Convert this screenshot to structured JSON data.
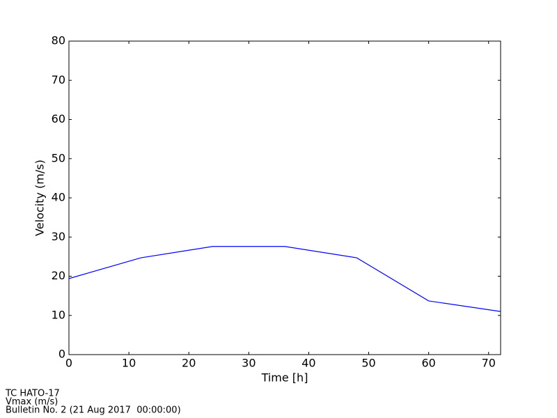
{
  "chart_data": {
    "type": "line",
    "xlabel": "Time [h]",
    "ylabel": "Velocity (m/s)",
    "x": [
      0,
      12,
      24,
      36,
      48,
      60,
      72
    ],
    "series": [
      {
        "name": "Vmax",
        "color": "#0000ff",
        "values": [
          19.4,
          24.7,
          27.6,
          27.6,
          24.7,
          13.7,
          11.0
        ]
      }
    ],
    "xlim": [
      0,
      72
    ],
    "xticks": [
      0,
      10,
      20,
      30,
      40,
      50,
      60,
      70
    ],
    "ylim": [
      0,
      80
    ],
    "yticks": [
      0,
      10,
      20,
      30,
      40,
      50,
      60,
      70,
      80
    ],
    "annotations": [
      "TC HATO-17",
      "Vmax (m/s)",
      "Bulletin No. 2 (21 Aug 2017  00:00:00)"
    ]
  }
}
